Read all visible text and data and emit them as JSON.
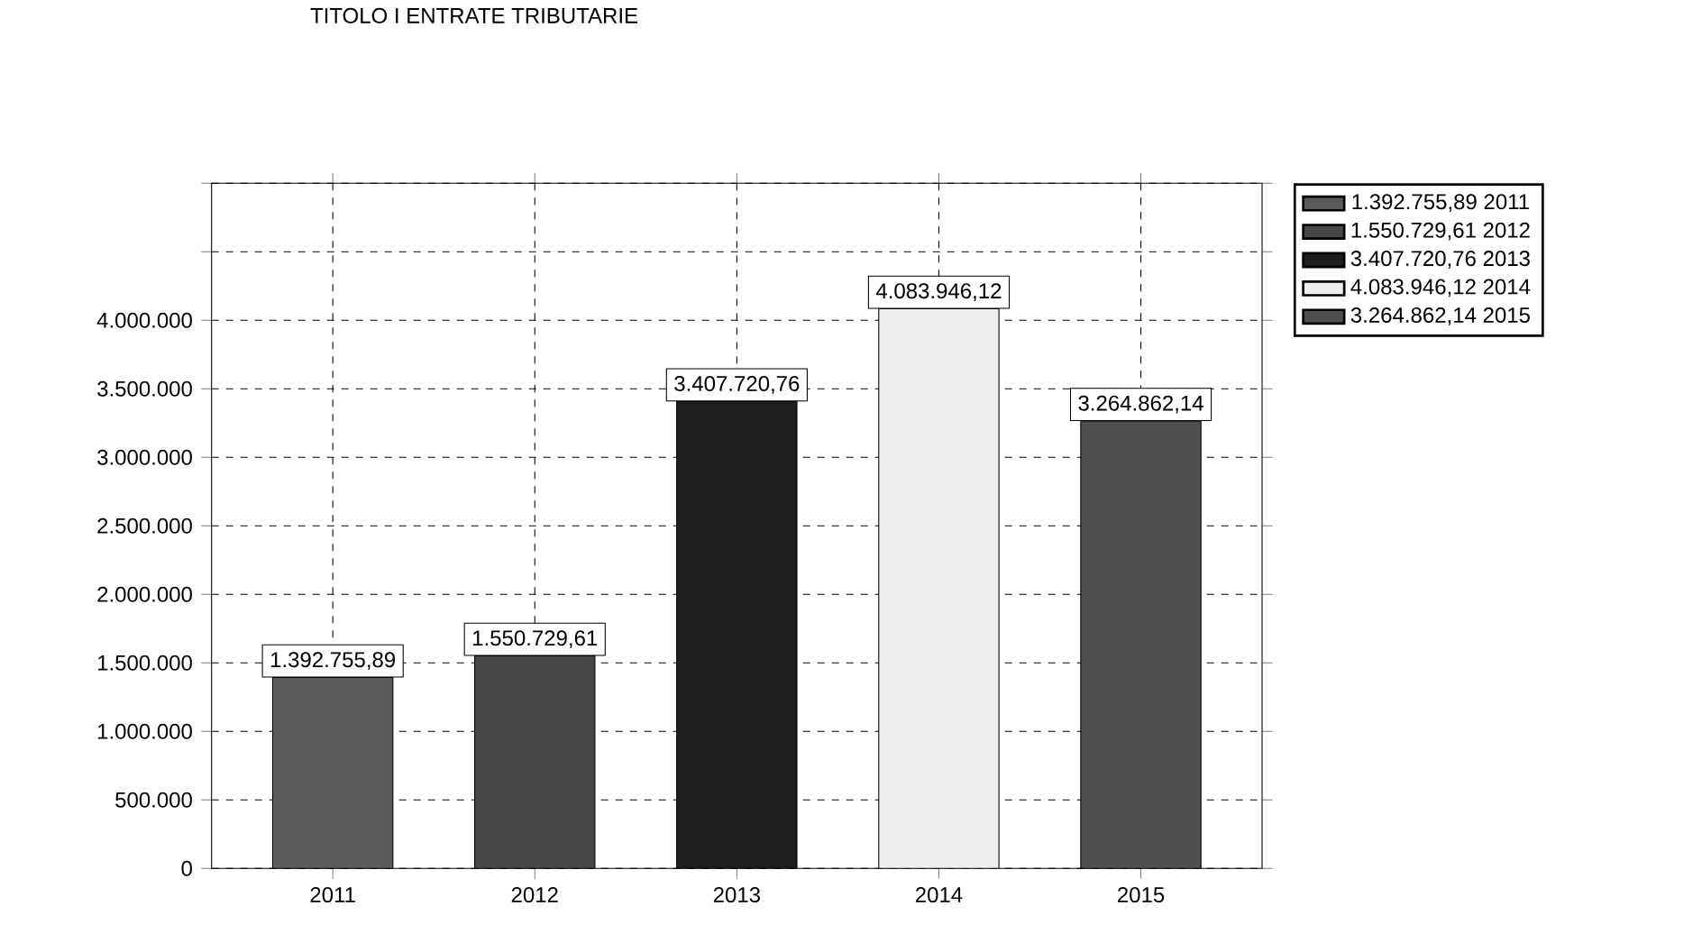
{
  "chart_data": {
    "type": "bar",
    "title": "TITOLO I ENTRATE TRIBUTARIE",
    "categories": [
      "2011",
      "2012",
      "2013",
      "2014",
      "2015"
    ],
    "series": [
      {
        "name": "1.392.755,89 2011",
        "color": "#5a5a5a",
        "values": [
          1392755.89,
          null,
          null,
          null,
          null
        ],
        "value_labels": [
          "1.392.755,89",
          null,
          null,
          null,
          null
        ]
      },
      {
        "name": "1.550.729,61 2012",
        "color": "#474747",
        "values": [
          null,
          1550729.61,
          null,
          null,
          null
        ],
        "value_labels": [
          null,
          "1.550.729,61",
          null,
          null,
          null
        ]
      },
      {
        "name": "3.407.720,76 2013",
        "color": "#1e1e1e",
        "values": [
          null,
          null,
          3407720.76,
          null,
          null
        ],
        "value_labels": [
          null,
          null,
          "3.407.720,76",
          null,
          null
        ]
      },
      {
        "name": "4.083.946,12 2014",
        "color": "#eeeeee",
        "values": [
          null,
          null,
          null,
          4083946.12,
          null
        ],
        "value_labels": [
          null,
          null,
          null,
          "4.083.946,12",
          null
        ]
      },
      {
        "name": "3.264.862,14 2015",
        "color": "#4e4e4e",
        "values": [
          null,
          null,
          null,
          null,
          3264862.14
        ],
        "value_labels": [
          null,
          null,
          null,
          null,
          "3.264.862,14"
        ]
      }
    ],
    "ylim": [
      0,
      5000000
    ],
    "yticks": [
      {
        "value": 0,
        "label": "0"
      },
      {
        "value": 500000,
        "label": "500.000"
      },
      {
        "value": 1000000,
        "label": "1.000.000"
      },
      {
        "value": 1500000,
        "label": "1.500.000"
      },
      {
        "value": 2000000,
        "label": "2.000.000"
      },
      {
        "value": 2500000,
        "label": "2.500.000"
      },
      {
        "value": 3000000,
        "label": "3.000.000"
      },
      {
        "value": 3500000,
        "label": "3.500.000"
      },
      {
        "value": 4000000,
        "label": "4.000.000"
      },
      {
        "value": 4500000,
        "label": null
      },
      {
        "value": 5000000,
        "label": null
      }
    ],
    "grid": true,
    "legend": "top right"
  }
}
